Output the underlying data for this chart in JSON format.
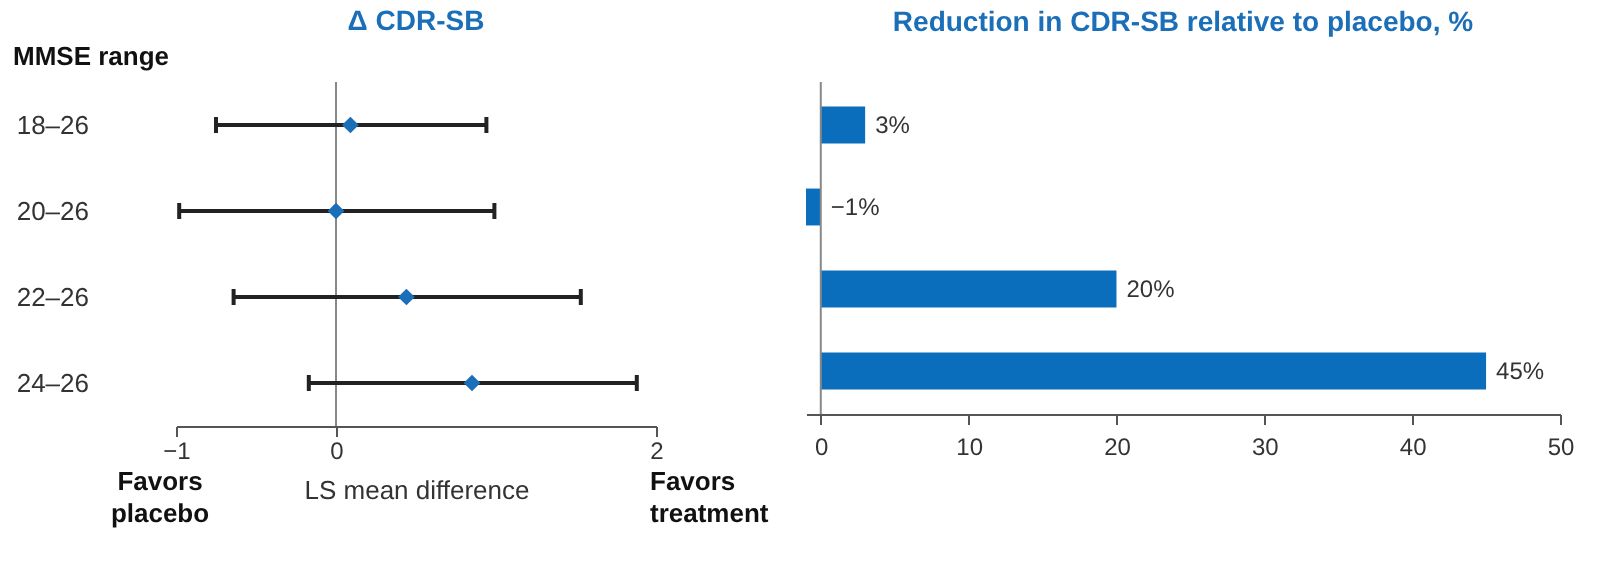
{
  "chart_data": [
    {
      "type": "scatter",
      "orientation": "horizontal",
      "title": "Δ CDR-SB",
      "ylabel": "MMSE range",
      "xlabel": "LS mean difference",
      "categories": [
        "18–26",
        "20–26",
        "22–26",
        "24–26"
      ],
      "series": [
        {
          "color": "#1a6fb8",
          "values": [
            0.09,
            0.0,
            0.44,
            0.85
          ],
          "errors": [
            [
              -0.75,
              0.94
            ],
            [
              -0.98,
              0.99
            ],
            [
              -0.64,
              1.53
            ],
            [
              -0.17,
              1.88
            ]
          ]
        }
      ],
      "xlim": [
        -1,
        2
      ],
      "xticks": [
        -1,
        0,
        2
      ],
      "marker": "diamond",
      "ref_lines": [
        {
          "axis": "x",
          "value": 0
        }
      ],
      "annotations": [
        "Favors placebo",
        "Favors treatment"
      ]
    },
    {
      "type": "bar",
      "orientation": "horizontal",
      "title": "Reduction in CDR-SB relative to placebo, %",
      "categories": [
        null,
        null,
        null,
        null
      ],
      "series": [
        {
          "color": "#0a6ebd",
          "values": [
            3,
            -1,
            20,
            45
          ],
          "value_labels": [
            "3%",
            "−1%",
            "20%",
            "45%"
          ]
        }
      ],
      "xlim": [
        -1,
        50
      ],
      "xticks": [
        0,
        10,
        20,
        30,
        40,
        50
      ],
      "tick_labels": "x",
      "ref_lines": [
        {
          "axis": "x",
          "value": 0
        }
      ]
    }
  ]
}
